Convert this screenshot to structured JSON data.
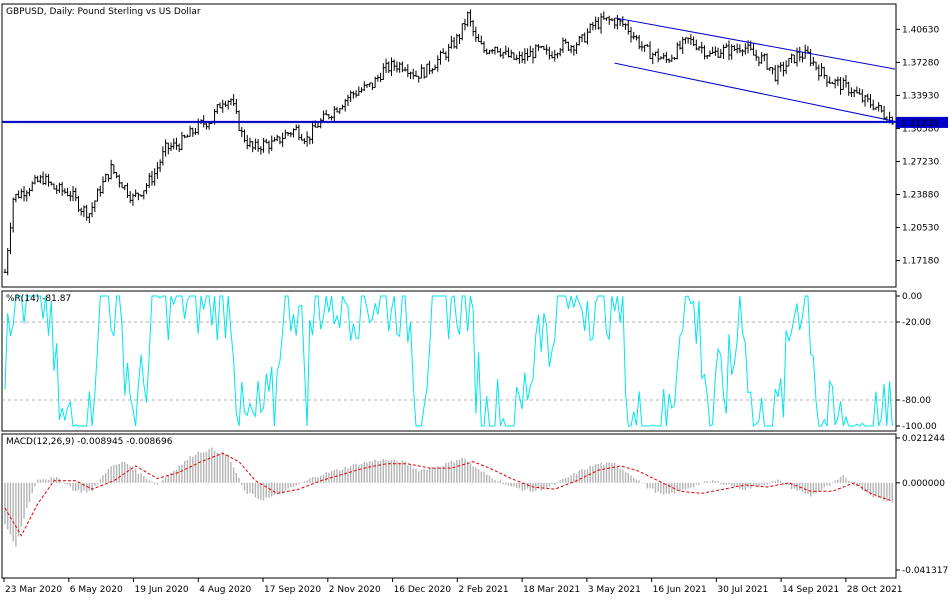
{
  "chart_data": [
    {
      "type": "ohlc",
      "title": "GBPUSD, Daily:  Pound Sterling vs US Dollar",
      "y_ticks": [
        "1.40630",
        "1.37280",
        "1.33930",
        "1.30580",
        "1.27230",
        "1.23880",
        "1.20530",
        "1.17180"
      ],
      "current_price_label": "1.31145",
      "current_price": 1.3115,
      "support_level_label": "1.31235",
      "support_level": 1.3124,
      "x_ticks": [
        "23 Mar 2020",
        "6 May 2020",
        "19 Jun 2020",
        "4 Aug 2020",
        "17 Sep 2020",
        "2 Nov 2020",
        "16 Dec 2020",
        "2 Feb 2021",
        "18 Mar 2021",
        "3 May 2021",
        "16 Jun 2021",
        "30 Jul 2021",
        "14 Sep 2021",
        "28 Oct 2021"
      ],
      "ylim": [
        1.145,
        1.432
      ],
      "close_path": [
        [
          0,
          1.16
        ],
        [
          3,
          1.235
        ],
        [
          8,
          1.245
        ],
        [
          14,
          1.255
        ],
        [
          18,
          1.245
        ],
        [
          24,
          1.24
        ],
        [
          28,
          1.225
        ],
        [
          31,
          1.22
        ],
        [
          35,
          1.245
        ],
        [
          39,
          1.265
        ],
        [
          43,
          1.25
        ],
        [
          47,
          1.235
        ],
        [
          51,
          1.245
        ],
        [
          55,
          1.26
        ],
        [
          59,
          1.285
        ],
        [
          64,
          1.29
        ],
        [
          68,
          1.3
        ],
        [
          72,
          1.31
        ],
        [
          76,
          1.315
        ],
        [
          80,
          1.335
        ],
        [
          83,
          1.335
        ],
        [
          87,
          1.3
        ],
        [
          91,
          1.285
        ],
        [
          95,
          1.29
        ],
        [
          99,
          1.29
        ],
        [
          103,
          1.3
        ],
        [
          107,
          1.305
        ],
        [
          111,
          1.295
        ],
        [
          115,
          1.31
        ],
        [
          119,
          1.32
        ],
        [
          123,
          1.33
        ],
        [
          127,
          1.34
        ],
        [
          131,
          1.345
        ],
        [
          135,
          1.35
        ],
        [
          139,
          1.365
        ],
        [
          143,
          1.37
        ],
        [
          147,
          1.37
        ],
        [
          151,
          1.36
        ],
        [
          155,
          1.365
        ],
        [
          159,
          1.375
        ],
        [
          163,
          1.385
        ],
        [
          167,
          1.4
        ],
        [
          170,
          1.42
        ],
        [
          173,
          1.395
        ],
        [
          176,
          1.385
        ],
        [
          180,
          1.39
        ],
        [
          184,
          1.38
        ],
        [
          188,
          1.375
        ],
        [
          192,
          1.38
        ],
        [
          196,
          1.385
        ],
        [
          200,
          1.38
        ],
        [
          204,
          1.39
        ],
        [
          208,
          1.39
        ],
        [
          212,
          1.395
        ],
        [
          216,
          1.41
        ],
        [
          220,
          1.415
        ],
        [
          224,
          1.415
        ],
        [
          228,
          1.41
        ],
        [
          231,
          1.4
        ],
        [
          235,
          1.385
        ],
        [
          239,
          1.38
        ],
        [
          243,
          1.375
        ],
        [
          247,
          1.385
        ],
        [
          251,
          1.395
        ],
        [
          255,
          1.39
        ],
        [
          259,
          1.38
        ],
        [
          263,
          1.385
        ],
        [
          267,
          1.385
        ],
        [
          271,
          1.39
        ],
        [
          275,
          1.38
        ],
        [
          279,
          1.375
        ],
        [
          283,
          1.36
        ],
        [
          287,
          1.37
        ],
        [
          291,
          1.38
        ],
        [
          295,
          1.38
        ],
        [
          299,
          1.365
        ],
        [
          303,
          1.355
        ],
        [
          307,
          1.35
        ],
        [
          311,
          1.345
        ],
        [
          315,
          1.335
        ],
        [
          319,
          1.33
        ],
        [
          323,
          1.32
        ],
        [
          326,
          1.315
        ]
      ],
      "channel_lines": [
        {
          "from": [
            224,
            1.418
          ],
          "to": [
            327,
            1.366
          ]
        },
        {
          "from": [
            224,
            1.372
          ],
          "to": [
            327,
            1.313
          ]
        }
      ]
    },
    {
      "type": "line",
      "title": "%R(14) -81.87",
      "y_ticks": [
        "0.00",
        "-20.00",
        "-80.00",
        "-100.00"
      ],
      "levels": [
        -20,
        -80
      ],
      "ylim": [
        -100,
        0
      ],
      "color": "#00e5ee"
    },
    {
      "type": "bar+line",
      "title": "MACD(12,26,9) -0.008945 -0.008696",
      "y_ticks": [
        "0.021244",
        "0.000000",
        "-0.041317"
      ],
      "ylim": [
        -0.041317,
        0.021244
      ],
      "histogram_color": "#b4b4b4",
      "signal_color": "#e00000",
      "macd_path": [
        [
          0,
          -0.02
        ],
        [
          4,
          -0.03
        ],
        [
          8,
          -0.012
        ],
        [
          12,
          0.002
        ],
        [
          20,
          0.002
        ],
        [
          26,
          -0.004
        ],
        [
          32,
          -0.004
        ],
        [
          38,
          0.007
        ],
        [
          44,
          0.01
        ],
        [
          50,
          0.004
        ],
        [
          56,
          -0.001
        ],
        [
          62,
          0.006
        ],
        [
          70,
          0.014
        ],
        [
          76,
          0.016
        ],
        [
          82,
          0.013
        ],
        [
          88,
          -0.004
        ],
        [
          94,
          -0.008
        ],
        [
          100,
          -0.006
        ],
        [
          106,
          -0.002
        ],
        [
          114,
          0.003
        ],
        [
          122,
          0.006
        ],
        [
          130,
          0.009
        ],
        [
          138,
          0.011
        ],
        [
          146,
          0.01
        ],
        [
          152,
          0.006
        ],
        [
          160,
          0.008
        ],
        [
          168,
          0.012
        ],
        [
          174,
          0.006
        ],
        [
          180,
          0.002
        ],
        [
          186,
          -0.002
        ],
        [
          194,
          -0.004
        ],
        [
          200,
          -0.002
        ],
        [
          206,
          0.002
        ],
        [
          212,
          0.006
        ],
        [
          218,
          0.009
        ],
        [
          224,
          0.009
        ],
        [
          230,
          0.004
        ],
        [
          236,
          -0.002
        ],
        [
          242,
          -0.006
        ],
        [
          248,
          -0.004
        ],
        [
          254,
          -0.001
        ],
        [
          260,
          0.001
        ],
        [
          266,
          -0.001
        ],
        [
          272,
          -0.003
        ],
        [
          278,
          -0.001
        ],
        [
          284,
          0.001
        ],
        [
          290,
          -0.003
        ],
        [
          296,
          -0.006
        ],
        [
          302,
          -0.002
        ],
        [
          308,
          0.003
        ],
        [
          314,
          -0.002
        ],
        [
          320,
          -0.007
        ],
        [
          326,
          -0.009
        ]
      ],
      "signal_path": [
        [
          0,
          -0.012
        ],
        [
          6,
          -0.025
        ],
        [
          12,
          -0.01
        ],
        [
          18,
          0.001
        ],
        [
          26,
          0.001
        ],
        [
          32,
          -0.003
        ],
        [
          40,
          0.001
        ],
        [
          48,
          0.008
        ],
        [
          56,
          0.002
        ],
        [
          64,
          0.005
        ],
        [
          72,
          0.01
        ],
        [
          80,
          0.014
        ],
        [
          86,
          0.01
        ],
        [
          92,
          0.001
        ],
        [
          100,
          -0.005
        ],
        [
          108,
          -0.003
        ],
        [
          116,
          0.001
        ],
        [
          124,
          0.004
        ],
        [
          132,
          0.007
        ],
        [
          140,
          0.009
        ],
        [
          148,
          0.009
        ],
        [
          156,
          0.007
        ],
        [
          164,
          0.007
        ],
        [
          172,
          0.01
        ],
        [
          178,
          0.007
        ],
        [
          186,
          0.002
        ],
        [
          194,
          -0.002
        ],
        [
          202,
          -0.003
        ],
        [
          210,
          0.001
        ],
        [
          218,
          0.006
        ],
        [
          226,
          0.008
        ],
        [
          232,
          0.006
        ],
        [
          240,
          0.001
        ],
        [
          248,
          -0.004
        ],
        [
          256,
          -0.005
        ],
        [
          264,
          -0.003
        ],
        [
          272,
          -0.001
        ],
        [
          280,
          -0.002
        ],
        [
          288,
          0
        ],
        [
          296,
          -0.004
        ],
        [
          304,
          -0.004
        ],
        [
          312,
          0
        ],
        [
          318,
          -0.005
        ],
        [
          326,
          -0.0087
        ]
      ]
    }
  ]
}
